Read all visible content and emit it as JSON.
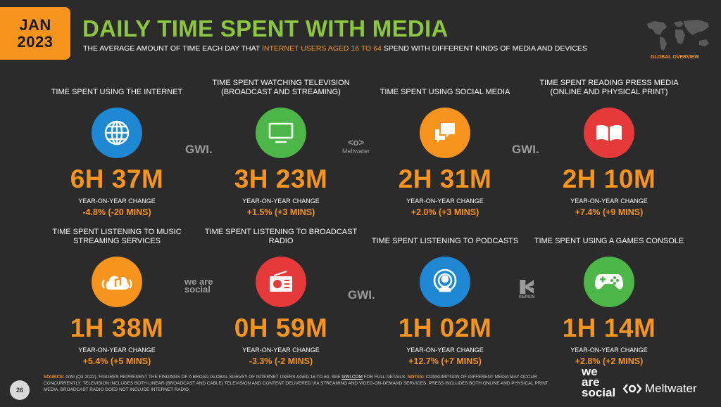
{
  "header": {
    "date_line1": "JAN",
    "date_line2": "2023",
    "title": "DAILY TIME SPENT WITH MEDIA",
    "subtitle_pre": "THE AVERAGE AMOUNT OF TIME EACH DAY THAT ",
    "subtitle_highlight": "INTERNET USERS AGED 16 TO 64",
    "subtitle_post": " SPEND WITH DIFFERENT KINDS OF MEDIA AND DEVICES",
    "global_overview": "GLOBAL OVERVIEW"
  },
  "colors": {
    "background": "#2b2b2b",
    "accent_orange": "#f7941d",
    "title_green": "#8cc63f",
    "internet_blue": "#1e88d4",
    "tv_green": "#4cb648",
    "social_orange": "#f7941d",
    "press_red": "#e63a3a"
  },
  "metrics": [
    {
      "label": "TIME SPENT USING THE INTERNET",
      "icon": "globe-icon",
      "value": "6H 37M",
      "yoy_label": "YEAR-ON-YEAR CHANGE",
      "yoy": "-4.8% (-20 MINS)"
    },
    {
      "label": "TIME SPENT WATCHING TELEVISION (BROADCAST AND STREAMING)",
      "icon": "television-icon",
      "value": "3H 23M",
      "yoy_label": "YEAR-ON-YEAR CHANGE",
      "yoy": "+1.5% (+3 MINS)"
    },
    {
      "label": "TIME SPENT USING SOCIAL MEDIA",
      "icon": "chat-bubbles-icon",
      "value": "2H 31M",
      "yoy_label": "YEAR-ON-YEAR CHANGE",
      "yoy": "+2.0% (+3 MINS)"
    },
    {
      "label": "TIME SPENT READING PRESS MEDIA (ONLINE AND PHYSICAL PRINT)",
      "icon": "book-icon",
      "value": "2H 10M",
      "yoy_label": "YEAR-ON-YEAR CHANGE",
      "yoy": "+7.4% (+9 MINS)"
    },
    {
      "label": "TIME SPENT LISTENING TO MUSIC STREAMING SERVICES",
      "icon": "music-cloud-icon",
      "value": "1H 38M",
      "yoy_label": "YEAR-ON-YEAR CHANGE",
      "yoy": "+5.4% (+5 MINS)"
    },
    {
      "label": "TIME SPENT LISTENING TO BROADCAST RADIO",
      "icon": "radio-icon",
      "value": "0H 59M",
      "yoy_label": "YEAR-ON-YEAR CHANGE",
      "yoy": "-3.3% (-2 MINS)"
    },
    {
      "label": "TIME SPENT LISTENING TO PODCASTS",
      "icon": "podcast-icon",
      "value": "1H 02M",
      "yoy_label": "YEAR-ON-YEAR CHANGE",
      "yoy": "+12.7% (+7 MINS)"
    },
    {
      "label": "TIME SPENT USING A GAMES CONSOLE",
      "icon": "gamepad-icon",
      "value": "1H 14M",
      "yoy_label": "YEAR-ON-YEAR CHANGE",
      "yoy": "+2.8% (+2 MINS)"
    }
  ],
  "sources": {
    "gwi": "GWI.",
    "meltwater": "Meltwater",
    "we_are_social": "we are social",
    "kepios": "KEPIOS"
  },
  "footer": {
    "page_number": "26",
    "source_key": "SOURCE:",
    "source_text": " GWI (Q3 2022). FIGURES REPRESENT THE FINDINGS OF A BROAD GLOBAL SURVEY OF INTERNET USERS AGED 16 TO 64. SEE ",
    "source_link": "GWI.COM",
    "source_tail": " FOR FULL DETAILS. ",
    "notes_key": "NOTES:",
    "notes_text": " CONSUMPTION OF DIFFERENT MEDIA MAY OCCUR CONCURRENTLY. TELEVISION INCLUDES BOTH LINEAR (BROADCAST AND CABLE) TELEVISION AND CONTENT DELIVERED VIA STREAMING AND VIDEO-ON-DEMAND SERVICES. PRESS INCLUDES BOTH ONLINE AND PHYSICAL PRINT MEDIA. BROADCAST RADIO DOES NOT INCLUDE INTERNET RADIO.",
    "logo_we": "we",
    "logo_are": "are",
    "logo_social": "social",
    "logo_meltwater": "Meltwater"
  }
}
